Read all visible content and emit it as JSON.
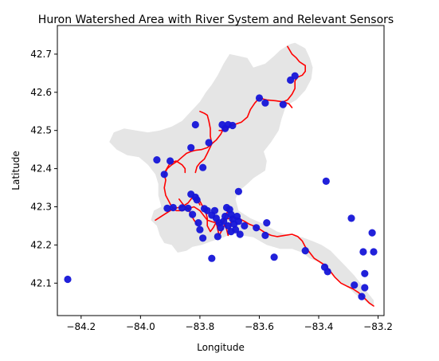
{
  "chart_data": {
    "type": "scatter",
    "title": "Huron Watershed Area with River System and Relevant Sensors",
    "xlabel": "Longitude",
    "ylabel": "Latitude",
    "xlim": [
      -84.28,
      -83.18
    ],
    "ylim": [
      42.015,
      42.775
    ],
    "xticks": [
      -84.2,
      -84.0,
      -83.8,
      -83.6,
      -83.4,
      -83.2
    ],
    "xtick_labels": [
      "−84.2",
      "−84.0",
      "−83.8",
      "−83.6",
      "−83.4",
      "−83.2"
    ],
    "yticks": [
      42.1,
      42.2,
      42.3,
      42.4,
      42.5,
      42.6,
      42.7
    ],
    "ytick_labels": [
      "42.1",
      "42.2",
      "42.3",
      "42.4",
      "42.5",
      "42.6",
      "42.7"
    ],
    "grid": false,
    "colors": {
      "watershed": "#e5e5e5",
      "river": "#ff0000",
      "sensor": "#1515d8"
    },
    "watershed_polygon": [
      [
        -83.94,
        42.36
      ],
      [
        -83.94,
        42.33
      ],
      [
        -83.93,
        42.3
      ],
      [
        -83.955,
        42.29
      ],
      [
        -83.965,
        42.265
      ],
      [
        -83.945,
        42.25
      ],
      [
        -83.935,
        42.225
      ],
      [
        -83.92,
        42.205
      ],
      [
        -83.895,
        42.2
      ],
      [
        -83.875,
        42.18
      ],
      [
        -83.845,
        42.185
      ],
      [
        -83.825,
        42.195
      ],
      [
        -83.795,
        42.2
      ],
      [
        -83.76,
        42.21
      ],
      [
        -83.72,
        42.22
      ],
      [
        -83.69,
        42.23
      ],
      [
        -83.66,
        42.225
      ],
      [
        -83.62,
        42.22
      ],
      [
        -83.575,
        42.2
      ],
      [
        -83.53,
        42.19
      ],
      [
        -83.49,
        42.19
      ],
      [
        -83.455,
        42.18
      ],
      [
        -83.43,
        42.165
      ],
      [
        -83.4,
        42.155
      ],
      [
        -83.375,
        42.135
      ],
      [
        -83.35,
        42.12
      ],
      [
        -83.32,
        42.1
      ],
      [
        -83.295,
        42.085
      ],
      [
        -83.275,
        42.07
      ],
      [
        -83.255,
        42.06
      ],
      [
        -83.23,
        42.045
      ],
      [
        -83.215,
        42.038
      ],
      [
        -83.215,
        42.055
      ],
      [
        -83.24,
        42.08
      ],
      [
        -83.26,
        42.1
      ],
      [
        -83.28,
        42.12
      ],
      [
        -83.31,
        42.145
      ],
      [
        -83.335,
        42.165
      ],
      [
        -83.36,
        42.185
      ],
      [
        -83.39,
        42.2
      ],
      [
        -83.42,
        42.21
      ],
      [
        -83.455,
        42.22
      ],
      [
        -83.5,
        42.225
      ],
      [
        -83.54,
        42.235
      ],
      [
        -83.585,
        42.255
      ],
      [
        -83.63,
        42.27
      ],
      [
        -83.67,
        42.29
      ],
      [
        -83.68,
        42.32
      ],
      [
        -83.67,
        42.34
      ],
      [
        -83.64,
        42.36
      ],
      [
        -83.62,
        42.375
      ],
      [
        -83.58,
        42.395
      ],
      [
        -83.575,
        42.42
      ],
      [
        -83.585,
        42.445
      ],
      [
        -83.56,
        42.47
      ],
      [
        -83.535,
        42.5
      ],
      [
        -83.525,
        42.53
      ],
      [
        -83.51,
        42.565
      ],
      [
        -83.475,
        42.58
      ],
      [
        -83.445,
        42.605
      ],
      [
        -83.425,
        42.635
      ],
      [
        -83.42,
        42.665
      ],
      [
        -83.43,
        42.69
      ],
      [
        -83.445,
        42.715
      ],
      [
        -83.48,
        42.73
      ],
      [
        -83.5,
        42.725
      ],
      [
        -83.53,
        42.71
      ],
      [
        -83.55,
        42.695
      ],
      [
        -83.58,
        42.675
      ],
      [
        -83.62,
        42.665
      ],
      [
        -83.64,
        42.69
      ],
      [
        -83.67,
        42.695
      ],
      [
        -83.7,
        42.7
      ],
      [
        -83.72,
        42.675
      ],
      [
        -83.74,
        42.645
      ],
      [
        -83.76,
        42.62
      ],
      [
        -83.78,
        42.6
      ],
      [
        -83.8,
        42.575
      ],
      [
        -83.83,
        42.55
      ],
      [
        -83.86,
        42.525
      ],
      [
        -83.895,
        42.51
      ],
      [
        -83.935,
        42.5
      ],
      [
        -83.975,
        42.495
      ],
      [
        -84.015,
        42.5
      ],
      [
        -84.055,
        42.505
      ],
      [
        -84.09,
        42.495
      ],
      [
        -84.105,
        42.47
      ],
      [
        -84.08,
        42.45
      ],
      [
        -84.045,
        42.435
      ],
      [
        -84.005,
        42.43
      ],
      [
        -83.975,
        42.41
      ],
      [
        -83.95,
        42.385
      ]
    ],
    "river_segments": [
      [
        [
          -83.505,
          42.72
        ],
        [
          -83.49,
          42.7
        ],
        [
          -83.475,
          42.69
        ],
        [
          -83.465,
          42.68
        ],
        [
          -83.455,
          42.675
        ],
        [
          -83.445,
          42.67
        ],
        [
          -83.445,
          42.655
        ],
        [
          -83.455,
          42.645
        ],
        [
          -83.47,
          42.64
        ],
        [
          -83.48,
          42.63
        ],
        [
          -83.48,
          42.61
        ],
        [
          -83.49,
          42.595
        ],
        [
          -83.505,
          42.58
        ],
        [
          -83.52,
          42.575
        ],
        [
          -83.545,
          42.578
        ],
        [
          -83.575,
          42.58
        ],
        [
          -83.6,
          42.585
        ],
        [
          -83.615,
          42.572
        ],
        [
          -83.63,
          42.555
        ],
        [
          -83.64,
          42.535
        ],
        [
          -83.66,
          42.522
        ],
        [
          -83.685,
          42.515
        ],
        [
          -83.705,
          42.51
        ],
        [
          -83.72,
          42.505
        ],
        [
          -83.73,
          42.49
        ],
        [
          -83.745,
          42.475
        ],
        [
          -83.76,
          42.465
        ],
        [
          -83.775,
          42.455
        ],
        [
          -83.795,
          42.45
        ],
        [
          -83.815,
          42.448
        ],
        [
          -83.83,
          42.445
        ],
        [
          -83.845,
          42.44
        ],
        [
          -83.86,
          42.43
        ],
        [
          -83.875,
          42.42
        ],
        [
          -83.895,
          42.41
        ],
        [
          -83.91,
          42.4
        ],
        [
          -83.92,
          42.385
        ],
        [
          -83.915,
          42.37
        ],
        [
          -83.92,
          42.35
        ],
        [
          -83.915,
          42.33
        ],
        [
          -83.905,
          42.315
        ],
        [
          -83.895,
          42.3
        ],
        [
          -83.88,
          42.29
        ],
        [
          -83.86,
          42.29
        ],
        [
          -83.84,
          42.295
        ],
        [
          -83.82,
          42.3
        ],
        [
          -83.8,
          42.29
        ],
        [
          -83.785,
          42.275
        ],
        [
          -83.775,
          42.265
        ],
        [
          -83.755,
          42.26
        ],
        [
          -83.74,
          42.258
        ],
        [
          -83.725,
          42.262
        ],
        [
          -83.71,
          42.268
        ],
        [
          -83.69,
          42.272
        ],
        [
          -83.67,
          42.27
        ],
        [
          -83.65,
          42.262
        ],
        [
          -83.635,
          42.255
        ],
        [
          -83.62,
          42.25
        ],
        [
          -83.6,
          42.242
        ],
        [
          -83.58,
          42.232
        ],
        [
          -83.56,
          42.225
        ],
        [
          -83.54,
          42.222
        ],
        [
          -83.515,
          42.225
        ],
        [
          -83.49,
          42.228
        ],
        [
          -83.47,
          42.222
        ],
        [
          -83.455,
          42.21
        ],
        [
          -83.445,
          42.195
        ],
        [
          -83.43,
          42.18
        ],
        [
          -83.415,
          42.165
        ],
        [
          -83.395,
          42.155
        ],
        [
          -83.375,
          42.145
        ],
        [
          -83.36,
          42.13
        ],
        [
          -83.345,
          42.115
        ],
        [
          -83.325,
          42.1
        ],
        [
          -83.305,
          42.092
        ],
        [
          -83.285,
          42.085
        ],
        [
          -83.265,
          42.075
        ],
        [
          -83.245,
          42.06
        ],
        [
          -83.23,
          42.048
        ],
        [
          -83.215,
          42.04
        ]
      ],
      [
        [
          -83.8,
          42.55
        ],
        [
          -83.785,
          42.545
        ],
        [
          -83.775,
          42.54
        ],
        [
          -83.77,
          42.525
        ],
        [
          -83.765,
          42.505
        ],
        [
          -83.765,
          42.485
        ],
        [
          -83.76,
          42.465
        ]
      ],
      [
        [
          -83.76,
          42.465
        ],
        [
          -83.775,
          42.44
        ],
        [
          -83.785,
          42.425
        ],
        [
          -83.8,
          42.415
        ],
        [
          -83.81,
          42.405
        ],
        [
          -83.815,
          42.39
        ]
      ],
      [
        [
          -83.915,
          42.395
        ],
        [
          -83.9,
          42.415
        ],
        [
          -83.88,
          42.42
        ],
        [
          -83.86,
          42.41
        ],
        [
          -83.85,
          42.4
        ],
        [
          -83.85,
          42.39
        ]
      ],
      [
        [
          -83.95,
          42.265
        ],
        [
          -83.92,
          42.28
        ],
        [
          -83.89,
          42.295
        ],
        [
          -83.86,
          42.3
        ],
        [
          -83.84,
          42.31
        ],
        [
          -83.825,
          42.325
        ],
        [
          -83.81,
          42.32
        ],
        [
          -83.8,
          42.305
        ]
      ],
      [
        [
          -83.81,
          42.33
        ],
        [
          -83.8,
          42.315
        ],
        [
          -83.79,
          42.3
        ],
        [
          -83.78,
          42.285
        ],
        [
          -83.775,
          42.27
        ]
      ],
      [
        [
          -83.745,
          42.26
        ],
        [
          -83.74,
          42.24
        ],
        [
          -83.735,
          42.225
        ],
        [
          -83.725,
          42.24
        ],
        [
          -83.715,
          42.255
        ],
        [
          -83.71,
          42.24
        ],
        [
          -83.705,
          42.225
        ],
        [
          -83.7,
          42.24
        ],
        [
          -83.695,
          42.26
        ],
        [
          -83.69,
          42.275
        ]
      ],
      [
        [
          -83.775,
          42.27
        ],
        [
          -83.775,
          42.25
        ],
        [
          -83.765,
          42.235
        ],
        [
          -83.755,
          42.245
        ],
        [
          -83.745,
          42.26
        ]
      ],
      [
        [
          -83.705,
          42.29
        ],
        [
          -83.715,
          42.275
        ],
        [
          -83.72,
          42.26
        ],
        [
          -83.73,
          42.25
        ],
        [
          -83.74,
          42.258
        ]
      ],
      [
        [
          -83.87,
          42.32
        ],
        [
          -83.86,
          42.31
        ],
        [
          -83.85,
          42.3
        ],
        [
          -83.84,
          42.295
        ],
        [
          -83.83,
          42.28
        ],
        [
          -83.82,
          42.265
        ],
        [
          -83.81,
          42.255
        ]
      ],
      [
        [
          -83.695,
          42.52
        ],
        [
          -83.705,
          42.505
        ],
        [
          -83.72,
          42.5
        ],
        [
          -83.735,
          42.5
        ]
      ],
      [
        [
          -83.52,
          42.575
        ],
        [
          -83.5,
          42.57
        ],
        [
          -83.49,
          42.56
        ]
      ]
    ],
    "sensors": [
      {
        "x": -84.245,
        "y": 42.11
      },
      {
        "x": -83.945,
        "y": 42.423
      },
      {
        "x": -83.92,
        "y": 42.385
      },
      {
        "x": -83.815,
        "y": 42.515
      },
      {
        "x": -83.9,
        "y": 42.42
      },
      {
        "x": -83.83,
        "y": 42.455
      },
      {
        "x": -83.79,
        "y": 42.403
      },
      {
        "x": -83.77,
        "y": 42.468
      },
      {
        "x": -83.725,
        "y": 42.515
      },
      {
        "x": -83.715,
        "y": 42.505
      },
      {
        "x": -83.705,
        "y": 42.515
      },
      {
        "x": -83.69,
        "y": 42.513
      },
      {
        "x": -83.6,
        "y": 42.585
      },
      {
        "x": -83.58,
        "y": 42.572
      },
      {
        "x": -83.52,
        "y": 42.568
      },
      {
        "x": -83.495,
        "y": 42.632
      },
      {
        "x": -83.48,
        "y": 42.643
      },
      {
        "x": -83.375,
        "y": 42.367
      },
      {
        "x": -83.91,
        "y": 42.296
      },
      {
        "x": -83.89,
        "y": 42.298
      },
      {
        "x": -83.86,
        "y": 42.297
      },
      {
        "x": -83.84,
        "y": 42.296
      },
      {
        "x": -83.83,
        "y": 42.333
      },
      {
        "x": -83.815,
        "y": 42.325
      },
      {
        "x": -83.81,
        "y": 42.318
      },
      {
        "x": -83.825,
        "y": 42.28
      },
      {
        "x": -83.805,
        "y": 42.258
      },
      {
        "x": -83.8,
        "y": 42.24
      },
      {
        "x": -83.79,
        "y": 42.218
      },
      {
        "x": -83.785,
        "y": 42.295
      },
      {
        "x": -83.775,
        "y": 42.29
      },
      {
        "x": -83.76,
        "y": 42.278
      },
      {
        "x": -83.75,
        "y": 42.29
      },
      {
        "x": -83.745,
        "y": 42.27
      },
      {
        "x": -83.735,
        "y": 42.258
      },
      {
        "x": -83.73,
        "y": 42.245
      },
      {
        "x": -83.72,
        "y": 42.262
      },
      {
        "x": -83.715,
        "y": 42.275
      },
      {
        "x": -83.71,
        "y": 42.298
      },
      {
        "x": -83.7,
        "y": 42.293
      },
      {
        "x": -83.695,
        "y": 42.28
      },
      {
        "x": -83.69,
        "y": 42.268
      },
      {
        "x": -83.685,
        "y": 42.255
      },
      {
        "x": -83.68,
        "y": 42.24
      },
      {
        "x": -83.695,
        "y": 42.235
      },
      {
        "x": -83.705,
        "y": 42.25
      },
      {
        "x": -83.675,
        "y": 42.275
      },
      {
        "x": -83.67,
        "y": 42.262
      },
      {
        "x": -83.665,
        "y": 42.228
      },
      {
        "x": -83.67,
        "y": 42.34
      },
      {
        "x": -83.65,
        "y": 42.25
      },
      {
        "x": -83.74,
        "y": 42.222
      },
      {
        "x": -83.76,
        "y": 42.165
      },
      {
        "x": -83.61,
        "y": 42.245
      },
      {
        "x": -83.575,
        "y": 42.258
      },
      {
        "x": -83.58,
        "y": 42.225
      },
      {
        "x": -83.55,
        "y": 42.168
      },
      {
        "x": -83.445,
        "y": 42.185
      },
      {
        "x": -83.38,
        "y": 42.142
      },
      {
        "x": -83.37,
        "y": 42.13
      },
      {
        "x": -83.29,
        "y": 42.27
      },
      {
        "x": -83.28,
        "y": 42.095
      },
      {
        "x": -83.255,
        "y": 42.065
      },
      {
        "x": -83.25,
        "y": 42.182
      },
      {
        "x": -83.245,
        "y": 42.125
      },
      {
        "x": -83.245,
        "y": 42.088
      },
      {
        "x": -83.22,
        "y": 42.232
      },
      {
        "x": -83.215,
        "y": 42.182
      }
    ]
  }
}
